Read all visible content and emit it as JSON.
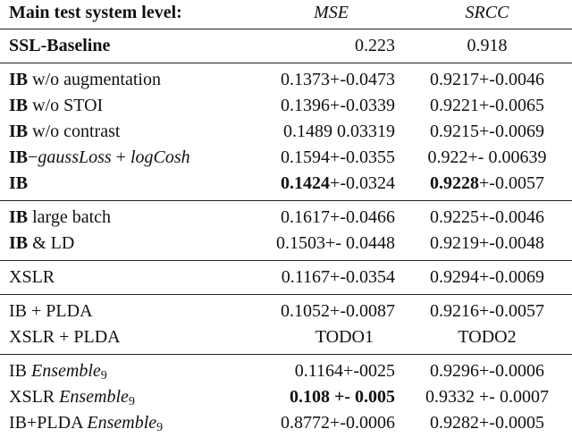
{
  "header": [
    "Main test system level:",
    "MSE",
    "SRCC"
  ],
  "groups": [
    {
      "rows": [
        {
          "label": [
            "SSL-Baseline"
          ],
          "mse": [
            "0.223"
          ],
          "srcc": [
            "0.918"
          ]
        }
      ]
    },
    {
      "rows": [
        {
          "label": [
            "IB",
            " w/o augmentation"
          ],
          "mse": [
            "0.1373+-0.0473"
          ],
          "srcc": [
            "0.9217+-0.0046"
          ]
        },
        {
          "label": [
            "IB",
            " w/o STOI"
          ],
          "mse": [
            "0.1396+-0.0339"
          ],
          "srcc": [
            "0.9221+-0.0065"
          ]
        },
        {
          "label": [
            "IB",
            " w/o contrast"
          ],
          "mse": [
            "0.1489 0.03319"
          ],
          "srcc": [
            "0.9215+-0.0069"
          ]
        },
        {
          "label": [
            "IB",
            "−",
            "gaussLoss",
            " + ",
            "logCosh"
          ],
          "mse": [
            "0.1594+-0.0355"
          ],
          "srcc": [
            "0.922+- 0.00639"
          ]
        },
        {
          "label": [
            "IB"
          ],
          "mse": [
            "0.1424",
            "+-0.0324"
          ],
          "srcc": [
            "0.9228",
            "+-0.0057"
          ]
        }
      ]
    },
    {
      "rows": [
        {
          "label": [
            "IB",
            " large batch"
          ],
          "mse": [
            "0.1617+-0.0466"
          ],
          "srcc": [
            "0.9225+-0.0046"
          ]
        },
        {
          "label": [
            "IB",
            " & LD"
          ],
          "mse": [
            "0.1503+- 0.0448"
          ],
          "srcc": [
            "0.9219+-0.0048"
          ]
        }
      ]
    },
    {
      "rows": [
        {
          "label": [
            "XSLR"
          ],
          "mse": [
            "0.1167+-0.0354"
          ],
          "srcc": [
            "0.9294+-0.0069"
          ]
        }
      ]
    },
    {
      "rows": [
        {
          "label": [
            "IB + PLDA"
          ],
          "mse": [
            "0.1052+-0.0087"
          ],
          "srcc": [
            "0.9216+-0.0057"
          ]
        },
        {
          "label": [
            "XSLR + PLDA"
          ],
          "mse": [
            "TODO1"
          ],
          "srcc": [
            "TODO2"
          ]
        }
      ]
    },
    {
      "rows": [
        {
          "label": [
            "IB ",
            "Ensemble",
            "9"
          ],
          "mse": [
            "0.1164+-0025"
          ],
          "srcc": [
            "0.9296+-0.0006"
          ]
        },
        {
          "label": [
            "XSLR ",
            "Ensemble",
            "9"
          ],
          "mse": [
            "0.108 +- 0.005"
          ],
          "srcc": [
            "0.9332 +- 0.0007"
          ]
        },
        {
          "label": [
            "IB+PLDA ",
            "Ensemble",
            "9"
          ],
          "mse": [
            "0.8772+-0.0006"
          ],
          "srcc": [
            "0.9282+-0.0005"
          ]
        }
      ]
    }
  ]
}
